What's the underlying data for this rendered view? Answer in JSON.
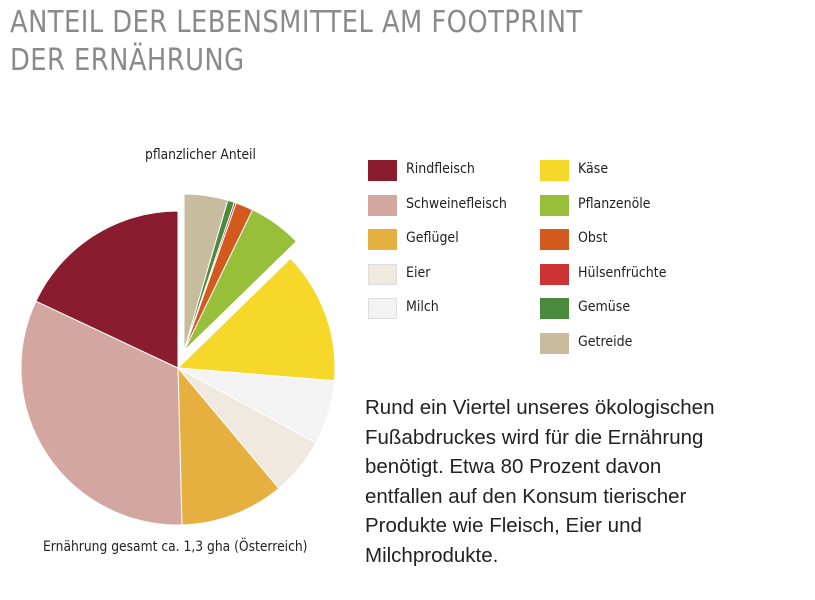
{
  "title_lines": [
    "ANTEIL DER LEBENSMITTEL AM FOOTPRINT",
    "DER ERNÄHRUNG"
  ],
  "chart_data": {
    "type": "pie",
    "title": "ANTEIL DER LEBENSMITTEL AM FOOTPRINT DER ERNÄHRUNG",
    "unit": "percent",
    "exploded_group": "pflanzlicher Anteil",
    "annotations": {
      "top": "pflanzlicher Anteil",
      "bottom": "Ernährung gesamt ca. 1,3 gha (Österreich)"
    },
    "slices": [
      {
        "label": "Getreide",
        "value": 4.5,
        "color": "#c8bc9e",
        "group": "plant"
      },
      {
        "label": "Gemüse",
        "value": 0.7,
        "color": "#4a8a3c",
        "group": "plant"
      },
      {
        "label": "Hülsenfrüchte",
        "value": 0.2,
        "color": "#cc3333",
        "group": "plant"
      },
      {
        "label": "Obst",
        "value": 1.8,
        "color": "#d35a1e",
        "group": "plant"
      },
      {
        "label": "Pflanzenöle",
        "value": 5.5,
        "color": "#98bf3a",
        "group": "plant"
      },
      {
        "label": "Käse",
        "value": 13.6,
        "color": "#f5d82a",
        "group": "animal"
      },
      {
        "label": "Milch",
        "value": 6.6,
        "color": "#f3f3f3",
        "group": "animal"
      },
      {
        "label": "Eier",
        "value": 6.0,
        "color": "#f0e9df",
        "group": "animal"
      },
      {
        "label": "Geflügel",
        "value": 10.7,
        "color": "#e6b040",
        "group": "animal"
      },
      {
        "label": "Schweinefleisch",
        "value": 32.4,
        "color": "#d4a6a0",
        "group": "animal"
      },
      {
        "label": "Rindfleisch",
        "value": 18.0,
        "color": "#8a1c30",
        "group": "animal"
      }
    ],
    "legend_columns": [
      [
        "Rindfleisch",
        "Schweinefleisch",
        "Geflügel",
        "Eier",
        "Milch"
      ],
      [
        "Käse",
        "Pflanzenöle",
        "Obst",
        "Hülsenfrüchte",
        "Gemüse",
        "Getreide"
      ]
    ]
  },
  "paragraph_lines": [
    "Rund ein Viertel unseres ökologischen",
    "Fußabdruckes wird für die Ernährung",
    "benötigt. Etwa 80 Prozent davon",
    "entfallen auf den Konsum tierischer",
    "Produkte wie Fleisch, Eier und",
    "Milchprodukte."
  ]
}
